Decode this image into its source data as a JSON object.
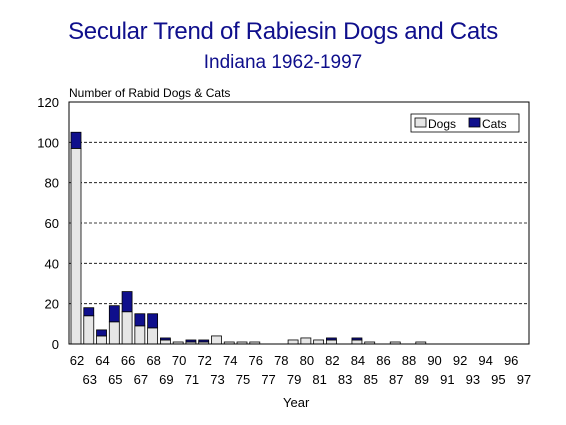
{
  "title": "Secular Trend of Rabiesin Dogs and Cats",
  "subtitle": "Indiana 1962-1997",
  "chart_data": {
    "type": "bar",
    "stacked": true,
    "ylabel": "Number of Rabid Dogs & Cats",
    "xlabel": "Year",
    "ylim": [
      0,
      120
    ],
    "yticks": [
      0,
      20,
      40,
      60,
      80,
      100,
      120
    ],
    "grid": "horizontal dashed",
    "legend_position": "top-right",
    "categories": [
      "62",
      "63",
      "64",
      "65",
      "66",
      "67",
      "68",
      "69",
      "70",
      "71",
      "72",
      "73",
      "74",
      "75",
      "76",
      "77",
      "78",
      "79",
      "80",
      "81",
      "82",
      "83",
      "84",
      "85",
      "86",
      "87",
      "88",
      "89",
      "90",
      "91",
      "92",
      "93",
      "94",
      "95",
      "96",
      "97"
    ],
    "series": [
      {
        "name": "Dogs",
        "color": "#e6e6e6",
        "values": [
          97,
          14,
          4,
          11,
          16,
          9,
          8,
          2,
          1,
          1,
          1,
          4,
          1,
          1,
          1,
          0,
          0,
          2,
          3,
          2,
          2,
          0,
          2,
          1,
          0,
          1,
          0,
          1,
          0,
          0,
          0,
          0,
          0,
          0,
          0,
          0
        ]
      },
      {
        "name": "Cats",
        "color": "#0f0f8c",
        "values": [
          8,
          4,
          3,
          8,
          10,
          6,
          7,
          1,
          0,
          1,
          1,
          0,
          0,
          0,
          0,
          0,
          0,
          0,
          0,
          0,
          1,
          0,
          1,
          0,
          0,
          0,
          0,
          0,
          0,
          0,
          0,
          0,
          0,
          0,
          0,
          0
        ]
      }
    ]
  }
}
